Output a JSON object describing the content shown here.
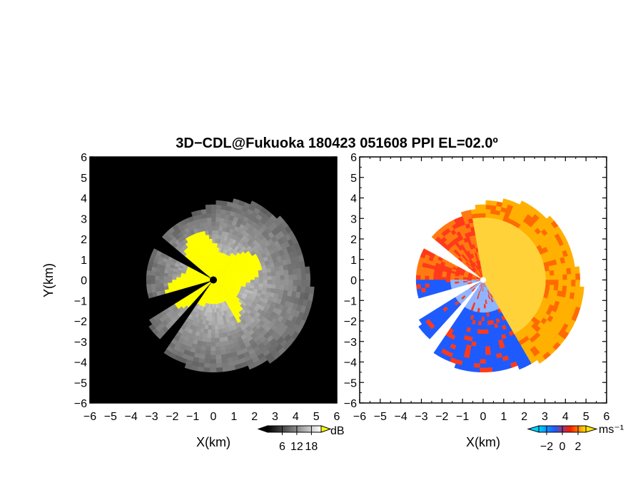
{
  "chart_data": [
    {
      "type": "heatmap",
      "panel": "left",
      "title": "3D−CDL@Fukuoka 180423 051608 PPI EL=02.0º",
      "xlabel": "X(km)",
      "ylabel": "Y(km)",
      "xlim": [
        -6,
        6
      ],
      "ylim": [
        -6,
        6
      ],
      "xticks": [
        "−6",
        "−5",
        "−4",
        "−3",
        "−2",
        "−1",
        "0",
        "1",
        "2",
        "3",
        "4",
        "5",
        "6"
      ],
      "yticks": [
        "−6",
        "−5",
        "−4",
        "−3",
        "−2",
        "−1",
        "0",
        "1",
        "2",
        "3",
        "4",
        "5",
        "6"
      ],
      "quantity": "SNR",
      "colorbar": {
        "unit": "dB",
        "ticks": [
          "6",
          "12",
          "18"
        ],
        "range": [
          0,
          22
        ],
        "colors": [
          "#000000",
          "#ffffff"
        ]
      },
      "saturation_color": "#ffff00"
    },
    {
      "type": "heatmap",
      "panel": "right",
      "xlabel": "X(km)",
      "xlim": [
        -6,
        6
      ],
      "ylim": [
        -6,
        6
      ],
      "xticks": [
        "−6",
        "−5",
        "−4",
        "−3",
        "−2",
        "−1",
        "0",
        "1",
        "2",
        "3",
        "4",
        "5",
        "6"
      ],
      "yticks": [
        "−6",
        "−5",
        "−4",
        "−3",
        "−2",
        "−1",
        "0",
        "1",
        "2",
        "3",
        "4",
        "5",
        "6"
      ],
      "quantity": "radial velocity",
      "colorbar": {
        "unit": "ms⁻¹",
        "ticks": [
          "−2",
          "0",
          "2"
        ],
        "range": [
          -3,
          3
        ],
        "colors": [
          "#00d0ff",
          "#1e5bff",
          "#ff1a00",
          "#ffe600"
        ]
      }
    }
  ]
}
